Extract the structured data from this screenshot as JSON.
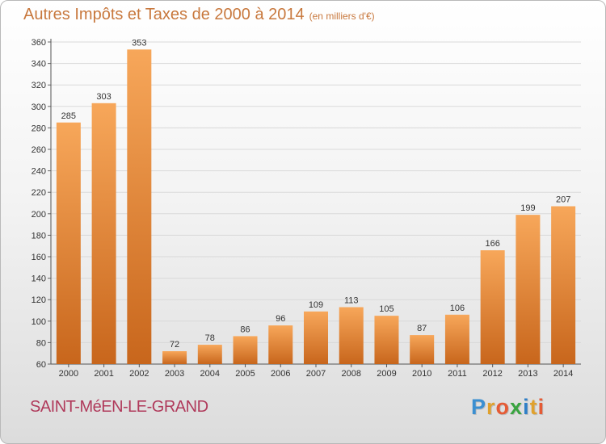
{
  "header": {
    "title": "Autres Impôts et Taxes de 2000 à 2014",
    "subtitle": "(en milliers d'€)"
  },
  "footer": {
    "commune": "SAINT-MéEN-LE-GRAND",
    "brand_letters": [
      "P",
      "r",
      "o",
      "x",
      "i",
      "t",
      "i"
    ],
    "brand_colors": [
      "#3b8fd1",
      "#e0a12d",
      "#e55b35",
      "#3aa441",
      "#2f7fc7",
      "#e0a12d",
      "#e55b35"
    ]
  },
  "colors": {
    "bar_light": "#f7a75a",
    "bar_dark": "#c8661c",
    "title": "#c8783d",
    "commune": "#b03a5b",
    "grid": "#d9d9d9"
  },
  "chart_data": {
    "type": "bar",
    "categories": [
      "2000",
      "2001",
      "2002",
      "2003",
      "2004",
      "2005",
      "2006",
      "2007",
      "2008",
      "2009",
      "2010",
      "2011",
      "2012",
      "2013",
      "2014"
    ],
    "values": [
      285,
      303,
      353,
      72,
      78,
      86,
      96,
      109,
      113,
      105,
      87,
      106,
      166,
      199,
      207
    ],
    "title": "Autres Impôts et Taxes de 2000 à 2014",
    "xlabel": "",
    "ylabel": "",
    "ylim": [
      60,
      360
    ],
    "yticks": [
      60,
      80,
      100,
      120,
      140,
      160,
      180,
      200,
      220,
      240,
      260,
      280,
      300,
      320,
      340,
      360
    ],
    "grid": true,
    "data_labels": true
  }
}
